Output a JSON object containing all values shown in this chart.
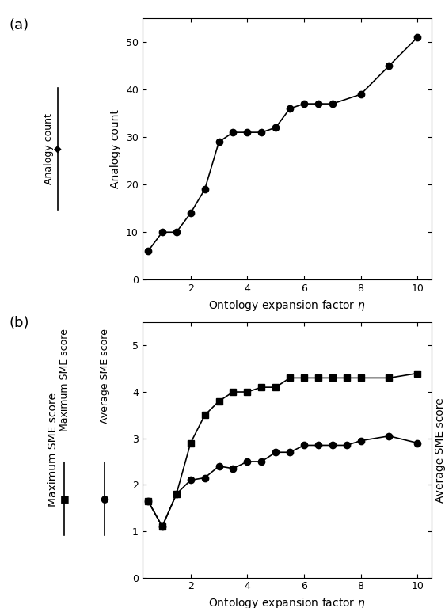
{
  "panel_a": {
    "x": [
      0.5,
      1.0,
      1.5,
      2.0,
      2.5,
      3.0,
      3.5,
      4.0,
      4.5,
      5.0,
      5.5,
      6.0,
      6.5,
      7.0,
      8.0,
      9.0,
      10.0
    ],
    "y": [
      6,
      10,
      10,
      14,
      19,
      29,
      31,
      31,
      31,
      32,
      36,
      37,
      37,
      37,
      39,
      45,
      51
    ],
    "ylabel": "Analogy count",
    "xlabel": "Ontology expansion factor $\\eta$",
    "ylim": [
      0,
      55
    ],
    "xlim": [
      0.3,
      10.5
    ],
    "yticks": [
      0,
      10,
      20,
      30,
      40,
      50
    ],
    "xticks": [
      2,
      4,
      6,
      8,
      10
    ],
    "legend_label": "Analogy count"
  },
  "panel_b": {
    "x": [
      0.5,
      1.0,
      1.5,
      2.0,
      2.5,
      3.0,
      3.5,
      4.0,
      4.5,
      5.0,
      5.5,
      6.0,
      6.5,
      7.0,
      7.5,
      8.0,
      9.0,
      10.0
    ],
    "y_max": [
      1.65,
      1.1,
      1.8,
      2.9,
      3.5,
      3.8,
      4.0,
      4.0,
      4.1,
      4.1,
      4.3,
      4.3,
      4.3,
      4.3,
      4.3,
      4.3,
      4.3,
      4.4
    ],
    "y_avg": [
      1.65,
      1.1,
      1.8,
      2.1,
      2.15,
      2.4,
      2.35,
      2.5,
      2.5,
      2.7,
      2.7,
      2.85,
      2.85,
      2.85,
      2.85,
      2.95,
      3.05,
      2.9
    ],
    "ylabel_left": "Maximum SME score",
    "ylabel_right": "Average SME score",
    "xlabel": "Ontology expansion factor $\\eta$",
    "ylim": [
      0,
      5.5
    ],
    "xlim": [
      0.3,
      10.5
    ],
    "yticks": [
      0,
      1,
      2,
      3,
      4,
      5
    ],
    "xticks": [
      2,
      4,
      6,
      8,
      10
    ],
    "legend_max": "Maximum SME score",
    "legend_avg": "Average SME score"
  },
  "color": "#000000",
  "bg_color": "#ffffff",
  "marker_circle": "o",
  "marker_square": "s",
  "marker_diamond": "D",
  "markersize": 6,
  "linewidth": 1.2,
  "label_fontsize": 10,
  "tick_fontsize": 9,
  "panel_label_fontsize": 13
}
